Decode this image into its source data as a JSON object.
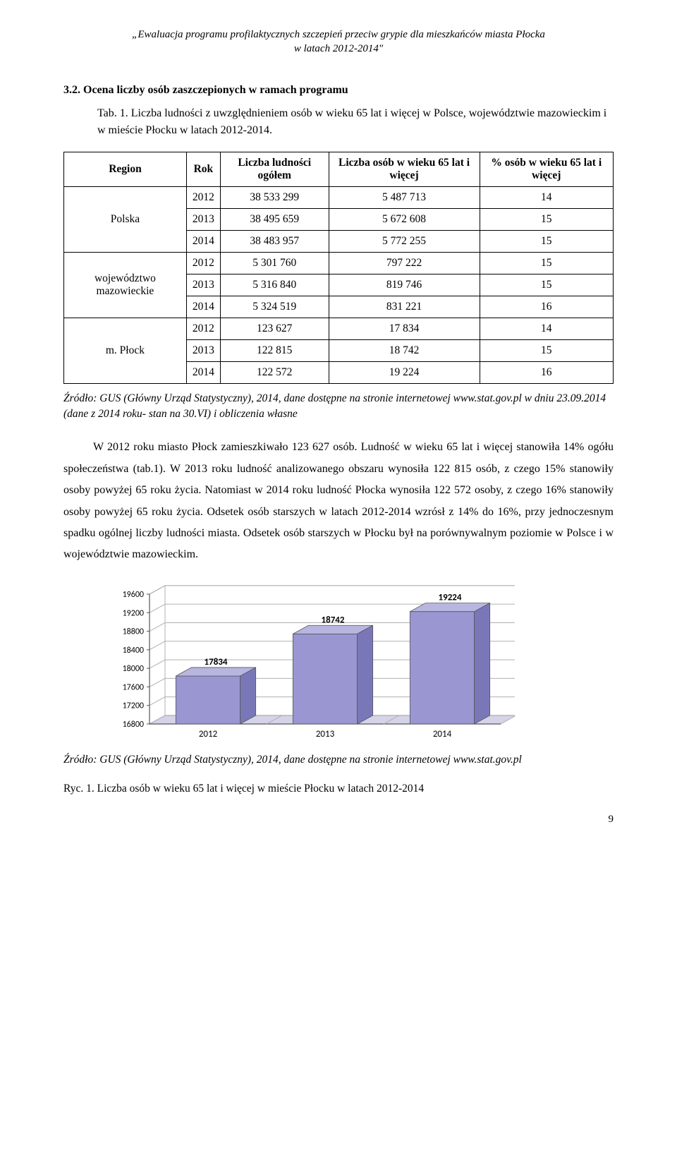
{
  "header": {
    "line1": "„Ewaluacja programu profilaktycznych szczepień przeciw grypie dla mieszkańców miasta Płocka",
    "line2": "w latach 2012-2014\""
  },
  "section": {
    "title": "3.2. Ocena liczby osób zaszczepionych w ramach programu",
    "tab_label": "Tab. 1. Liczba ludności z uwzględnieniem osób w wieku 65 lat i więcej w Polsce, województwie mazowieckim i w mieście Płocku w latach 2012-2014."
  },
  "table": {
    "columns": [
      "Region",
      "Rok",
      "Liczba ludności ogółem",
      "Liczba osób w wieku 65 lat i więcej",
      "% osób w wieku 65 lat i więcej"
    ],
    "groups": [
      {
        "region": "Polska",
        "rows": [
          {
            "rok": "2012",
            "ogolem": "38 533 299",
            "w65": "5 487 713",
            "pct": "14"
          },
          {
            "rok": "2013",
            "ogolem": "38  495 659",
            "w65": "5 672 608",
            "pct": "15"
          },
          {
            "rok": "2014",
            "ogolem": "38 483 957",
            "w65": "5 772 255",
            "pct": "15"
          }
        ]
      },
      {
        "region": "województwo mazowieckie",
        "rows": [
          {
            "rok": "2012",
            "ogolem": "5 301 760",
            "w65": "797 222",
            "pct": "15"
          },
          {
            "rok": "2013",
            "ogolem": "5 316 840",
            "w65": "819 746",
            "pct": "15"
          },
          {
            "rok": "2014",
            "ogolem": "5 324 519",
            "w65": "831 221",
            "pct": "16"
          }
        ]
      },
      {
        "region": "m. Płock",
        "rows": [
          {
            "rok": "2012",
            "ogolem": "123 627",
            "w65": "17 834",
            "pct": "14"
          },
          {
            "rok": "2013",
            "ogolem": "122 815",
            "w65": "18 742",
            "pct": "15"
          },
          {
            "rok": "2014",
            "ogolem": "122 572",
            "w65": "19 224",
            "pct": "16"
          }
        ]
      }
    ]
  },
  "source1": "Źródło: GUS (Główny Urząd Statystyczny), 2014, dane dostępne na stronie internetowej www.stat.gov.pl w dniu 23.09.2014 (dane z 2014 roku- stan na 30.VI)  i obliczenia własne",
  "body": "W 2012 roku miasto Płock zamieszkiwało 123 627 osób. Ludność w wieku 65 lat i więcej stanowiła 14% ogółu społeczeństwa (tab.1). W 2013 roku ludność analizowanego obszaru wynosiła 122 815 osób, z czego 15% stanowiły osoby powyżej 65 roku życia. Natomiast w 2014 roku ludność Płocka wynosiła 122 572 osoby, z czego 16% stanowiły osoby powyżej 65 roku życia. Odsetek osób starszych w latach 2012-2014 wzrósł z 14% do 16%,  przy jednoczesnym spadku ogólnej liczby ludności miasta. Odsetek osób starszych w Płocku był na porównywalnym poziomie w Polsce i w województwie mazowieckim.",
  "chart": {
    "type": "bar3d",
    "categories": [
      "2012",
      "2013",
      "2014"
    ],
    "values": [
      17834,
      18742,
      19224
    ],
    "labels": [
      "17834",
      "18742",
      "19224"
    ],
    "ylim": [
      16800,
      19600
    ],
    "ytick_step": 400,
    "yticks": [
      "16800",
      "17200",
      "17600",
      "18000",
      "18400",
      "18800",
      "19200",
      "19600"
    ],
    "bar_front_color": "#9a96d2",
    "bar_top_color": "#b8b6e0",
    "bar_side_color": "#7a77b8",
    "floor_color": "#d4d3e8",
    "wall_color": "#ffffff",
    "grid_color": "#b0b0b0",
    "axis_color": "#555555",
    "label_fontsize": 13,
    "tick_fontsize": 12
  },
  "source2": "Źródło: GUS (Główny Urząd Statystyczny), 2014, dane dostępne na stronie internetowej www.stat.gov.pl",
  "fig_caption": "Ryc. 1.  Liczba osób w wieku 65 lat i więcej w mieście Płocku w latach 2012-2014",
  "page_number": "9"
}
